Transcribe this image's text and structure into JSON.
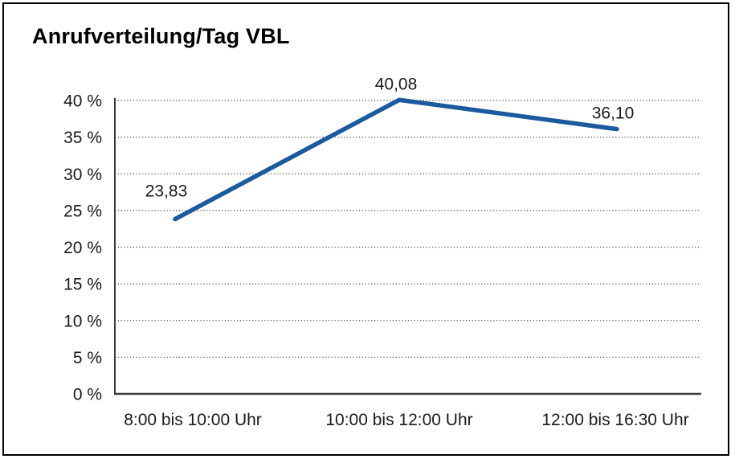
{
  "chart_data": {
    "type": "line",
    "title": "Anrufverteilung/Tag VBL",
    "categories": [
      "8:00 bis 10:00 Uhr",
      "10:00 bis 12:00 Uhr",
      "12:00 bis 16:30 Uhr"
    ],
    "values": [
      23.83,
      40.08,
      36.1
    ],
    "value_labels": [
      "23,83",
      "40,08",
      "36,10"
    ],
    "xlabel": "",
    "ylabel": "",
    "ylim": [
      0,
      40
    ],
    "ytick_step": 5,
    "yticks": [
      0,
      5,
      10,
      15,
      20,
      25,
      30,
      35,
      40
    ],
    "ytick_labels": [
      "0 %",
      "5 %",
      "10 %",
      "15 %",
      "20 %",
      "25 %",
      "30 %",
      "35 %",
      "40 %"
    ],
    "grid": "horizontal-dotted",
    "legend": "none",
    "colors": {
      "line": "#1b5a9e",
      "axis": "#3a3a3a",
      "gridline": "#4a4a4a",
      "text": "#1a1a1a",
      "frame": "#000000",
      "background": "#ffffff"
    }
  }
}
